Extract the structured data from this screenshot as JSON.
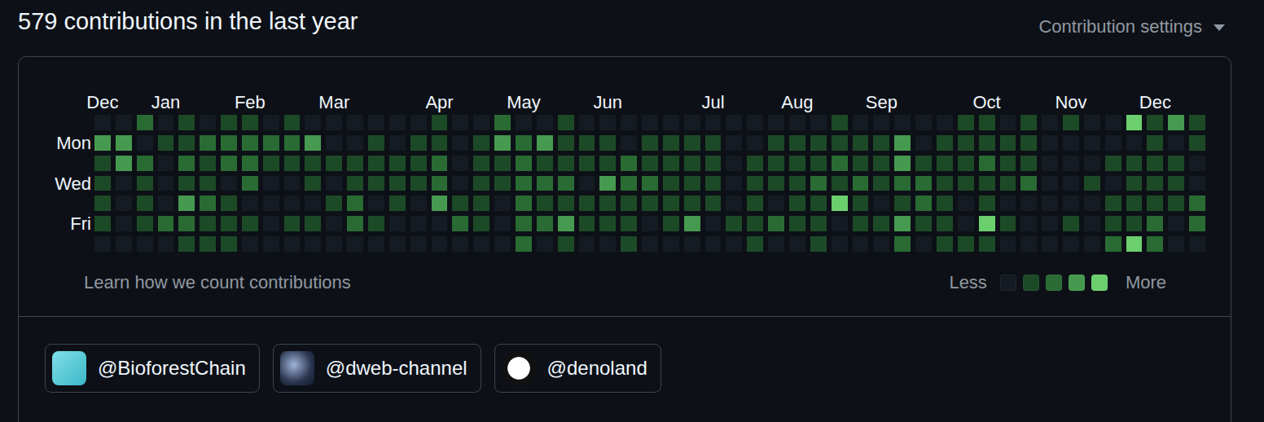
{
  "header": {
    "title": "579 contributions in the last year",
    "settings": "Contribution settings"
  },
  "chart_data": {
    "type": "heatmap",
    "categories": [
      "Dec",
      null,
      null,
      "Jan",
      null,
      null,
      null,
      "Feb",
      null,
      null,
      null,
      "Mar",
      null,
      null,
      null,
      null,
      "Apr",
      null,
      null,
      null,
      "May",
      null,
      null,
      null,
      "Jun",
      null,
      null,
      null,
      null,
      "Jul",
      null,
      null,
      null,
      "Aug",
      null,
      null,
      null,
      "Sep",
      null,
      null,
      null,
      null,
      "Oct",
      null,
      null,
      null,
      "Nov",
      null,
      null,
      null,
      "Dec",
      null,
      null
    ],
    "rows": [
      null,
      "Mon",
      null,
      "Wed",
      null,
      "Fri",
      null
    ],
    "cells": [
      [
        0,
        0,
        2,
        0,
        1,
        0,
        1,
        1,
        0,
        1,
        0,
        0,
        0,
        0,
        0,
        0,
        1,
        0,
        0,
        2,
        0,
        0,
        1,
        0,
        0,
        0,
        0,
        0,
        0,
        0,
        0,
        0,
        0,
        0,
        0,
        1,
        0,
        0,
        0,
        0,
        0,
        1,
        1,
        0,
        1,
        0,
        1,
        0,
        0,
        4,
        1,
        3,
        1
      ],
      [
        3,
        3,
        0,
        1,
        1,
        2,
        2,
        2,
        2,
        2,
        3,
        0,
        0,
        1,
        0,
        1,
        1,
        0,
        1,
        3,
        2,
        3,
        1,
        1,
        1,
        0,
        1,
        1,
        1,
        1,
        0,
        0,
        1,
        1,
        1,
        1,
        1,
        1,
        3,
        0,
        1,
        1,
        1,
        1,
        1,
        0,
        0,
        0,
        0,
        0,
        1,
        0,
        1
      ],
      [
        1,
        3,
        2,
        0,
        2,
        1,
        2,
        2,
        1,
        1,
        1,
        1,
        1,
        1,
        1,
        1,
        2,
        0,
        1,
        1,
        2,
        1,
        1,
        1,
        1,
        2,
        1,
        1,
        1,
        1,
        0,
        1,
        1,
        1,
        1,
        2,
        1,
        1,
        3,
        1,
        1,
        1,
        2,
        1,
        1,
        0,
        0,
        0,
        1,
        1,
        1,
        1,
        0
      ],
      [
        1,
        0,
        1,
        0,
        1,
        1,
        0,
        2,
        0,
        0,
        1,
        0,
        1,
        1,
        1,
        1,
        2,
        0,
        1,
        1,
        2,
        2,
        2,
        0,
        3,
        2,
        2,
        1,
        1,
        1,
        0,
        1,
        1,
        1,
        2,
        1,
        2,
        1,
        2,
        2,
        1,
        1,
        1,
        1,
        2,
        0,
        0,
        1,
        0,
        1,
        1,
        1,
        0
      ],
      [
        1,
        0,
        1,
        0,
        3,
        2,
        1,
        0,
        0,
        0,
        0,
        1,
        2,
        0,
        1,
        0,
        3,
        1,
        1,
        0,
        2,
        1,
        1,
        1,
        1,
        1,
        1,
        1,
        1,
        1,
        0,
        1,
        0,
        1,
        1,
        4,
        1,
        0,
        1,
        2,
        1,
        0,
        1,
        0,
        0,
        0,
        0,
        0,
        1,
        1,
        1,
        1,
        2
      ],
      [
        1,
        0,
        1,
        2,
        2,
        1,
        1,
        1,
        0,
        1,
        1,
        0,
        2,
        1,
        0,
        0,
        0,
        2,
        1,
        0,
        2,
        2,
        3,
        1,
        1,
        1,
        0,
        1,
        3,
        0,
        1,
        1,
        2,
        1,
        1,
        0,
        1,
        1,
        3,
        1,
        1,
        0,
        4,
        1,
        0,
        0,
        1,
        0,
        1,
        1,
        2,
        0,
        2
      ],
      [
        0,
        0,
        0,
        0,
        1,
        1,
        1,
        0,
        0,
        0,
        0,
        0,
        0,
        0,
        0,
        0,
        0,
        0,
        0,
        0,
        2,
        0,
        1,
        0,
        0,
        1,
        0,
        0,
        0,
        0,
        0,
        1,
        0,
        0,
        1,
        0,
        0,
        0,
        2,
        0,
        1,
        1,
        1,
        0,
        0,
        0,
        0,
        0,
        2,
        4,
        2,
        0,
        0
      ]
    ],
    "colors": [
      "#151b23",
      "#1d4a26",
      "#2a6b34",
      "#469a4f",
      "#6ccf6e"
    ]
  },
  "footer": {
    "link": "Learn how we count contributions",
    "legend_low": "Less",
    "legend_high": "More"
  },
  "organizations": [
    "@BioforestChain",
    "@dweb-channel",
    "@denoland"
  ]
}
